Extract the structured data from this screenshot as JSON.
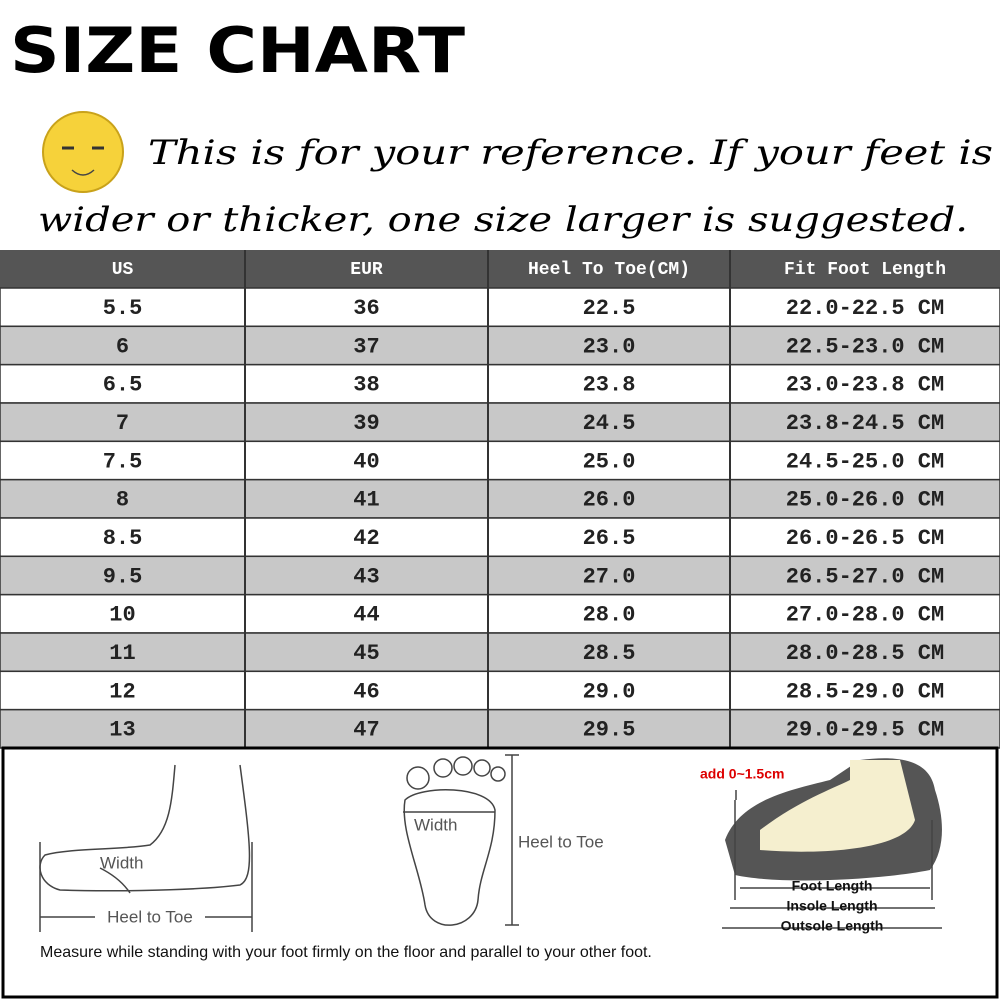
{
  "header": {
    "title": "SIZE CHART"
  },
  "note": {
    "line1": "This is for your reference. If your feet is",
    "line2": "wider or thicker, one size larger is suggested."
  },
  "table": {
    "columns": [
      "US",
      "EUR",
      "Heel To Toe(CM)",
      "Fit Foot Length"
    ],
    "rows": [
      [
        "5.5",
        "36",
        "22.5",
        "22.0-22.5 CM"
      ],
      [
        "6",
        "37",
        "23.0",
        "22.5-23.0 CM"
      ],
      [
        "6.5",
        "38",
        "23.8",
        "23.0-23.8 CM"
      ],
      [
        "7",
        "39",
        "24.5",
        "23.8-24.5 CM"
      ],
      [
        "7.5",
        "40",
        "25.0",
        "24.5-25.0 CM"
      ],
      [
        "8",
        "41",
        "26.0",
        "25.0-26.0 CM"
      ],
      [
        "8.5",
        "42",
        "26.5",
        "26.0-26.5 CM"
      ],
      [
        "9.5",
        "43",
        "27.0",
        "26.5-27.0 CM"
      ],
      [
        "10",
        "44",
        "28.0",
        "27.0-28.0 CM"
      ],
      [
        "11",
        "45",
        "28.5",
        "28.0-28.5 CM"
      ],
      [
        "12",
        "46",
        "29.0",
        "28.5-29.0 CM"
      ],
      [
        "13",
        "47",
        "29.5",
        "29.0-29.5 CM"
      ]
    ]
  },
  "figures": {
    "side": {
      "width": "Width",
      "length": "Heel to Toe"
    },
    "sole": {
      "width": "Width",
      "length": "Heel to Toe"
    },
    "shoe": {
      "add": "add 0~1.5cm",
      "foot": "Foot Length",
      "insole": "Insole Length",
      "outsole": "Outsole Length"
    },
    "caption": "Measure while standing with your foot firmly on the floor and parallel to your other foot."
  }
}
